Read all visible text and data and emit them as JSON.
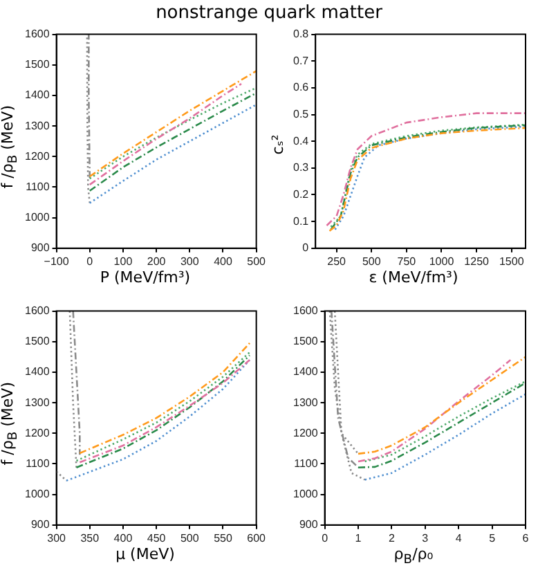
{
  "chart_data": [
    {
      "type": "line",
      "title": "nonstrange quark matter",
      "xlabel": "P (MeV/fm³)",
      "ylabel": "f /ρ$_{B}$ (MeV)",
      "xlim": [
        -100,
        500
      ],
      "ylim": [
        900,
        1600
      ],
      "xticks": [
        {
          "value": -100,
          "label": "−100"
        },
        0,
        100,
        200,
        300,
        400,
        500
      ],
      "yticks": [
        900,
        1000,
        1100,
        1200,
        1300,
        1400,
        1500,
        1600
      ],
      "grid": false,
      "legend": false,
      "marker": "none",
      "series": [
        {
          "color": "#ff9a1a",
          "line_style": "dashed",
          "x": [
            0,
            100,
            200,
            300,
            400,
            500
          ],
          "values": [
            1135,
            1210,
            1280,
            1350,
            1415,
            1480
          ]
        },
        {
          "color": "#e0709e",
          "line_style": "dashed",
          "x": [
            0,
            100,
            200,
            300,
            400,
            455
          ],
          "values": [
            1108,
            1185,
            1258,
            1325,
            1400,
            1438
          ]
        },
        {
          "color": "#4faa6a",
          "line_style": "dotted",
          "x": [
            0,
            100,
            200,
            300,
            400,
            500
          ],
          "values": [
            1128,
            1200,
            1262,
            1320,
            1375,
            1425
          ]
        },
        {
          "color": "#2a8a4a",
          "line_style": "dashed",
          "x": [
            0,
            100,
            200,
            300,
            400,
            500
          ],
          "values": [
            1088,
            1165,
            1230,
            1290,
            1350,
            1408
          ]
        },
        {
          "color": "#4f8fd0",
          "line_style": "dotted",
          "x": [
            0,
            100,
            200,
            300,
            400,
            500
          ],
          "values": [
            1048,
            1120,
            1190,
            1250,
            1310,
            1370
          ]
        },
        {
          "color": "#8a8a8a",
          "line_style": "dotted",
          "x": [
            0,
            -5,
            -7,
            -8
          ],
          "values": [
            1048,
            1100,
            1300,
            1600
          ]
        },
        {
          "color": "#8a8a8a",
          "line_style": "dashed",
          "x": [
            0,
            -3,
            -3
          ],
          "values": [
            1130,
            1400,
            1600
          ]
        }
      ]
    },
    {
      "type": "line",
      "xlabel": "ε (MeV/fm³)",
      "ylabel": "cₛ²",
      "xlim": [
        100,
        1600
      ],
      "ylim": [
        0,
        0.8
      ],
      "xticks": [
        250,
        500,
        750,
        1000,
        1250,
        1500
      ],
      "yticks": [
        0,
        0.1,
        0.2,
        0.3,
        0.4,
        0.5,
        0.6,
        0.7,
        0.8
      ],
      "grid": false,
      "legend": false,
      "marker": "none",
      "series": [
        {
          "color": "#e0709e",
          "line_style": "dashed",
          "x": [
            180,
            250,
            300,
            350,
            400,
            500,
            750,
            1000,
            1250,
            1600
          ],
          "values": [
            0.085,
            0.12,
            0.2,
            0.3,
            0.37,
            0.42,
            0.47,
            0.49,
            0.505,
            0.505
          ]
        },
        {
          "color": "#ff9a1a",
          "line_style": "dashed",
          "x": [
            200,
            250,
            300,
            350,
            400,
            500,
            750,
            1000,
            1250,
            1600
          ],
          "values": [
            0.065,
            0.085,
            0.14,
            0.26,
            0.33,
            0.375,
            0.41,
            0.43,
            0.44,
            0.45
          ]
        },
        {
          "color": "#2a8a4a",
          "line_style": "dashed",
          "x": [
            210,
            280,
            350,
            400,
            500,
            750,
            1000,
            1250,
            1600
          ],
          "values": [
            0.07,
            0.12,
            0.28,
            0.34,
            0.385,
            0.415,
            0.435,
            0.45,
            0.46
          ]
        },
        {
          "color": "#4faa6a",
          "line_style": "dotted",
          "x": [
            210,
            280,
            350,
            400,
            500,
            750,
            1000,
            1250,
            1600
          ],
          "values": [
            0.08,
            0.12,
            0.29,
            0.35,
            0.39,
            0.42,
            0.44,
            0.452,
            0.462
          ]
        },
        {
          "color": "#4f8fd0",
          "line_style": "dotted",
          "x": [
            240,
            300,
            400,
            450,
            550,
            750,
            1000,
            1250,
            1600
          ],
          "values": [
            0.07,
            0.12,
            0.27,
            0.34,
            0.385,
            0.41,
            0.43,
            0.445,
            0.455
          ]
        }
      ]
    },
    {
      "type": "line",
      "xlabel": "μ (MeV)",
      "ylabel": "f /ρ$_{B}$ (MeV)",
      "xlim": [
        300,
        600
      ],
      "ylim": [
        900,
        1600
      ],
      "xticks": [
        300,
        350,
        400,
        450,
        500,
        550,
        600
      ],
      "yticks": [
        900,
        1000,
        1100,
        1200,
        1300,
        1400,
        1500,
        1600
      ],
      "grid": false,
      "legend": false,
      "marker": "none",
      "series": [
        {
          "color": "#ff9a1a",
          "line_style": "dashed",
          "x": [
            335,
            400,
            450,
            500,
            550,
            590
          ],
          "values": [
            1135,
            1195,
            1250,
            1320,
            1400,
            1495
          ]
        },
        {
          "color": "#4faa6a",
          "line_style": "dotted",
          "x": [
            330,
            400,
            450,
            500,
            550,
            590
          ],
          "values": [
            1110,
            1180,
            1235,
            1305,
            1385,
            1465
          ]
        },
        {
          "color": "#e0709e",
          "line_style": "dashed",
          "x": [
            335,
            400,
            450,
            500,
            550,
            590
          ],
          "values": [
            1105,
            1160,
            1220,
            1290,
            1365,
            1440
          ]
        },
        {
          "color": "#2a8a4a",
          "line_style": "dashed",
          "x": [
            330,
            400,
            450,
            500,
            550,
            590
          ],
          "values": [
            1088,
            1150,
            1210,
            1285,
            1370,
            1455
          ]
        },
        {
          "color": "#4f8fd0",
          "line_style": "dotted",
          "x": [
            315,
            400,
            450,
            500,
            550,
            590
          ],
          "values": [
            1045,
            1115,
            1175,
            1255,
            1345,
            1440
          ]
        },
        {
          "color": "#8a8a8a",
          "line_style": "dotted",
          "x": [
            300,
            315
          ],
          "values": [
            1075,
            1045
          ]
        },
        {
          "color": "#8a8a8a",
          "line_style": "dashed",
          "x": [
            325,
            330,
            335,
            335
          ],
          "values": [
            1600,
            1400,
            1200,
            1130
          ]
        },
        {
          "color": "#8a8a8a",
          "line_style": "dotted",
          "x": [
            320,
            325,
            330
          ],
          "values": [
            1600,
            1300,
            1088
          ]
        }
      ]
    },
    {
      "type": "line",
      "xlabel": "ρ$_{B}$/ρ₀",
      "xlim": [
        0,
        6
      ],
      "ylim": [
        900,
        1600
      ],
      "xticks": [
        0,
        1,
        2,
        3,
        4,
        5,
        6
      ],
      "yticks": [
        900,
        1000,
        1100,
        1200,
        1300,
        1400,
        1500,
        1600
      ],
      "grid": false,
      "legend": false,
      "marker": "none",
      "series": [
        {
          "color": "#ff9a1a",
          "line_style": "dashed",
          "x": [
            1,
            1.5,
            2,
            3,
            4,
            5,
            6
          ],
          "values": [
            1133,
            1140,
            1160,
            1220,
            1300,
            1375,
            1450
          ]
        },
        {
          "color": "#e0709e",
          "line_style": "dashed",
          "x": [
            1,
            1.5,
            2,
            3,
            4,
            5,
            5.55
          ],
          "values": [
            1108,
            1118,
            1140,
            1215,
            1305,
            1390,
            1440
          ]
        },
        {
          "color": "#4faa6a",
          "line_style": "dotted",
          "x": [
            1.2,
            2,
            3,
            4,
            5,
            6
          ],
          "values": [
            1108,
            1130,
            1190,
            1255,
            1315,
            1370
          ]
        },
        {
          "color": "#2a8a4a",
          "line_style": "dashed",
          "x": [
            1,
            1.5,
            2,
            3,
            4,
            5,
            6
          ],
          "values": [
            1088,
            1090,
            1110,
            1170,
            1235,
            1300,
            1365
          ]
        },
        {
          "color": "#4f8fd0",
          "line_style": "dotted",
          "x": [
            1.2,
            2,
            3,
            4,
            5,
            6
          ],
          "values": [
            1048,
            1070,
            1130,
            1195,
            1265,
            1328
          ]
        },
        {
          "color": "#8a8a8a",
          "line_style": "dotted",
          "x": [
            0.15,
            0.3,
            0.5,
            1
          ],
          "values": [
            1600,
            1350,
            1200,
            1133
          ]
        },
        {
          "color": "#8a8a8a",
          "line_style": "dashed",
          "x": [
            0.2,
            0.4,
            0.7,
            1
          ],
          "values": [
            1600,
            1250,
            1120,
            1088
          ]
        },
        {
          "color": "#8a8a8a",
          "line_style": "dotted",
          "x": [
            0.3,
            0.5,
            0.8,
            1.2
          ],
          "values": [
            1600,
            1200,
            1070,
            1048
          ]
        }
      ]
    }
  ]
}
